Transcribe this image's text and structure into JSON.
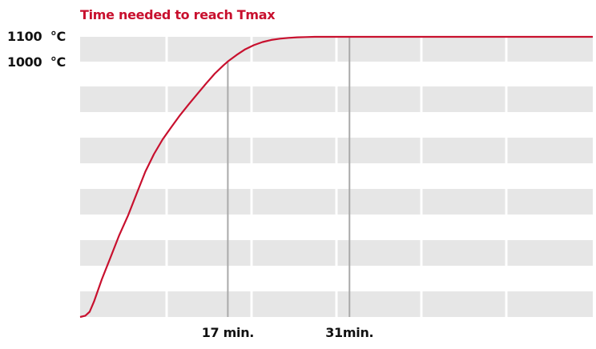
{
  "chart_data": {
    "type": "line",
    "title": "Time needed to reach Tmax",
    "xlabel": "",
    "ylabel": "",
    "series": [
      {
        "points": [
          [
            0,
            20
          ],
          [
            0.6,
            25
          ],
          [
            1.1,
            40
          ],
          [
            1.6,
            80
          ],
          [
            2.5,
            165
          ],
          [
            3.5,
            250
          ],
          [
            4.5,
            335
          ],
          [
            5.5,
            410
          ],
          [
            6.5,
            495
          ],
          [
            7.5,
            580
          ],
          [
            8.5,
            648
          ],
          [
            9.5,
            705
          ],
          [
            10.5,
            752
          ],
          [
            11.5,
            798
          ],
          [
            12.5,
            840
          ],
          [
            13.5,
            880
          ],
          [
            14.5,
            920
          ],
          [
            15.5,
            958
          ],
          [
            16.5,
            990
          ],
          [
            17,
            1005
          ],
          [
            18,
            1030
          ],
          [
            19,
            1052
          ],
          [
            20,
            1068
          ],
          [
            21,
            1080
          ],
          [
            22,
            1088
          ],
          [
            23,
            1093
          ],
          [
            24,
            1096
          ],
          [
            25,
            1098
          ],
          [
            26,
            1099
          ],
          [
            27,
            1100
          ],
          [
            29,
            1100
          ],
          [
            31,
            1100
          ],
          [
            35,
            1100
          ],
          [
            40,
            1100
          ],
          [
            45,
            1100
          ],
          [
            50,
            1100
          ],
          [
            55,
            1100
          ],
          [
            59,
            1100
          ]
        ],
        "color": "#c8102e"
      }
    ],
    "yticks": [
      {
        "value": 1100,
        "label": "1100  °C"
      },
      {
        "value": 1000,
        "label": "1000  °C"
      }
    ],
    "xticks": [
      {
        "value": 17,
        "label": "17 min."
      },
      {
        "value": 31,
        "label": "31min."
      }
    ],
    "markers": [
      17,
      31
    ],
    "xlim": [
      0,
      59
    ],
    "ylim": [
      20,
      1100
    ],
    "grid": true,
    "colors": {
      "line": "#c8102e",
      "band": "#e6e6e6",
      "marker": "#a9a9a9",
      "text": "#111111"
    }
  }
}
